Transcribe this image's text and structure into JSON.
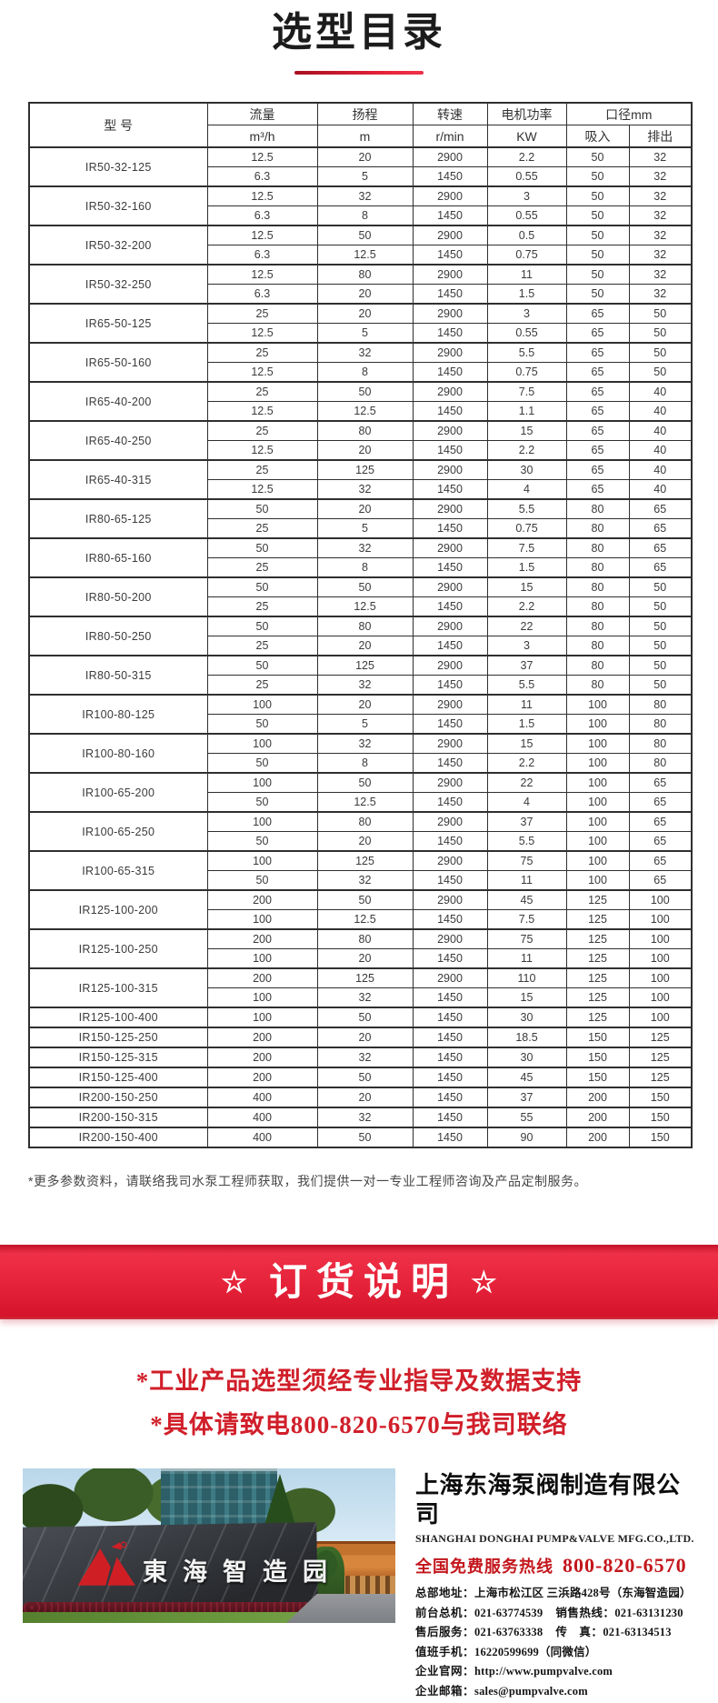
{
  "page": {
    "title": "选型目录"
  },
  "colors": {
    "accent_red": "#e62339",
    "banner_red_top": "#ee3148",
    "banner_red_bottom": "#d5142c",
    "promo_text_red": "#d01f2a",
    "hotline_red": "#c3161c",
    "table_border": "#2f2f2f",
    "title_text": "#1c1c1c"
  },
  "table": {
    "headers": {
      "model": "型 号",
      "flow": "流量",
      "flow_unit": "m³/h",
      "head": "扬程",
      "head_unit": "m",
      "speed": "转速",
      "speed_unit": "r/min",
      "power": "电机功率",
      "power_unit": "KW",
      "diameter": "口径mm",
      "suction": "吸入",
      "discharge": "排出"
    },
    "models": [
      {
        "name": "IR50-32-125",
        "rows": [
          [
            "12.5",
            "20",
            "2900",
            "2.2",
            "50",
            "32"
          ],
          [
            "6.3",
            "5",
            "1450",
            "0.55",
            "50",
            "32"
          ]
        ]
      },
      {
        "name": "IR50-32-160",
        "rows": [
          [
            "12.5",
            "32",
            "2900",
            "3",
            "50",
            "32"
          ],
          [
            "6.3",
            "8",
            "1450",
            "0.55",
            "50",
            "32"
          ]
        ]
      },
      {
        "name": "IR50-32-200",
        "rows": [
          [
            "12.5",
            "50",
            "2900",
            "0.5",
            "50",
            "32"
          ],
          [
            "6.3",
            "12.5",
            "1450",
            "0.75",
            "50",
            "32"
          ]
        ]
      },
      {
        "name": "IR50-32-250",
        "rows": [
          [
            "12.5",
            "80",
            "2900",
            "11",
            "50",
            "32"
          ],
          [
            "6.3",
            "20",
            "1450",
            "1.5",
            "50",
            "32"
          ]
        ]
      },
      {
        "name": "IR65-50-125",
        "rows": [
          [
            "25",
            "20",
            "2900",
            "3",
            "65",
            "50"
          ],
          [
            "12.5",
            "5",
            "1450",
            "0.55",
            "65",
            "50"
          ]
        ]
      },
      {
        "name": "IR65-50-160",
        "rows": [
          [
            "25",
            "32",
            "2900",
            "5.5",
            "65",
            "50"
          ],
          [
            "12.5",
            "8",
            "1450",
            "0.75",
            "65",
            "50"
          ]
        ]
      },
      {
        "name": "IR65-40-200",
        "rows": [
          [
            "25",
            "50",
            "2900",
            "7.5",
            "65",
            "40"
          ],
          [
            "12.5",
            "12.5",
            "1450",
            "1.1",
            "65",
            "40"
          ]
        ]
      },
      {
        "name": "IR65-40-250",
        "rows": [
          [
            "25",
            "80",
            "2900",
            "15",
            "65",
            "40"
          ],
          [
            "12.5",
            "20",
            "1450",
            "2.2",
            "65",
            "40"
          ]
        ]
      },
      {
        "name": "IR65-40-315",
        "rows": [
          [
            "25",
            "125",
            "2900",
            "30",
            "65",
            "40"
          ],
          [
            "12.5",
            "32",
            "1450",
            "4",
            "65",
            "40"
          ]
        ]
      },
      {
        "name": "IR80-65-125",
        "rows": [
          [
            "50",
            "20",
            "2900",
            "5.5",
            "80",
            "65"
          ],
          [
            "25",
            "5",
            "1450",
            "0.75",
            "80",
            "65"
          ]
        ]
      },
      {
        "name": "IR80-65-160",
        "rows": [
          [
            "50",
            "32",
            "2900",
            "7.5",
            "80",
            "65"
          ],
          [
            "25",
            "8",
            "1450",
            "1.5",
            "80",
            "65"
          ]
        ]
      },
      {
        "name": "IR80-50-200",
        "rows": [
          [
            "50",
            "50",
            "2900",
            "15",
            "80",
            "50"
          ],
          [
            "25",
            "12.5",
            "1450",
            "2.2",
            "80",
            "50"
          ]
        ]
      },
      {
        "name": "IR80-50-250",
        "rows": [
          [
            "50",
            "80",
            "2900",
            "22",
            "80",
            "50"
          ],
          [
            "25",
            "20",
            "1450",
            "3",
            "80",
            "50"
          ]
        ]
      },
      {
        "name": "IR80-50-315",
        "rows": [
          [
            "50",
            "125",
            "2900",
            "37",
            "80",
            "50"
          ],
          [
            "25",
            "32",
            "1450",
            "5.5",
            "80",
            "50"
          ]
        ]
      },
      {
        "name": "IR100-80-125",
        "rows": [
          [
            "100",
            "20",
            "2900",
            "11",
            "100",
            "80"
          ],
          [
            "50",
            "5",
            "1450",
            "1.5",
            "100",
            "80"
          ]
        ]
      },
      {
        "name": "IR100-80-160",
        "rows": [
          [
            "100",
            "32",
            "2900",
            "15",
            "100",
            "80"
          ],
          [
            "50",
            "8",
            "1450",
            "2.2",
            "100",
            "80"
          ]
        ]
      },
      {
        "name": "IR100-65-200",
        "rows": [
          [
            "100",
            "50",
            "2900",
            "22",
            "100",
            "65"
          ],
          [
            "50",
            "12.5",
            "1450",
            "4",
            "100",
            "65"
          ]
        ]
      },
      {
        "name": "IR100-65-250",
        "rows": [
          [
            "100",
            "80",
            "2900",
            "37",
            "100",
            "65"
          ],
          [
            "50",
            "20",
            "1450",
            "5.5",
            "100",
            "65"
          ]
        ]
      },
      {
        "name": "IR100-65-315",
        "rows": [
          [
            "100",
            "125",
            "2900",
            "75",
            "100",
            "65"
          ],
          [
            "50",
            "32",
            "1450",
            "11",
            "100",
            "65"
          ]
        ]
      },
      {
        "name": "IR125-100-200",
        "rows": [
          [
            "200",
            "50",
            "2900",
            "45",
            "125",
            "100"
          ],
          [
            "100",
            "12.5",
            "1450",
            "7.5",
            "125",
            "100"
          ]
        ]
      },
      {
        "name": "IR125-100-250",
        "rows": [
          [
            "200",
            "80",
            "2900",
            "75",
            "125",
            "100"
          ],
          [
            "100",
            "20",
            "1450",
            "11",
            "125",
            "100"
          ]
        ]
      },
      {
        "name": "IR125-100-315",
        "rows": [
          [
            "200",
            "125",
            "2900",
            "110",
            "125",
            "100"
          ],
          [
            "100",
            "32",
            "1450",
            "15",
            "125",
            "100"
          ]
        ]
      },
      {
        "name": "IR125-100-400",
        "rows": [
          [
            "100",
            "50",
            "1450",
            "30",
            "125",
            "100"
          ]
        ]
      },
      {
        "name": "IR150-125-250",
        "rows": [
          [
            "200",
            "20",
            "1450",
            "18.5",
            "150",
            "125"
          ]
        ]
      },
      {
        "name": "IR150-125-315",
        "rows": [
          [
            "200",
            "32",
            "1450",
            "30",
            "150",
            "125"
          ]
        ]
      },
      {
        "name": "IR150-125-400",
        "rows": [
          [
            "200",
            "50",
            "1450",
            "45",
            "150",
            "125"
          ]
        ]
      },
      {
        "name": "IR200-150-250",
        "rows": [
          [
            "400",
            "20",
            "1450",
            "37",
            "200",
            "150"
          ]
        ]
      },
      {
        "name": "IR200-150-315",
        "rows": [
          [
            "400",
            "32",
            "1450",
            "55",
            "200",
            "150"
          ]
        ]
      },
      {
        "name": "IR200-150-400",
        "rows": [
          [
            "400",
            "50",
            "1450",
            "90",
            "200",
            "150"
          ]
        ]
      }
    ],
    "note": "*更多参数资料，请联络我司水泵工程师获取，我们提供一对一专业工程师咨询及产品定制服务。"
  },
  "order_section": {
    "star": "☆",
    "title": "订货说明",
    "lines": [
      "*工业产品选型须经专业指导及数据支持",
      "*具体请致电800-820-6570与我司联络"
    ]
  },
  "footer": {
    "photo_sign": "東海智造园",
    "company_cn": "上海东海泵阀制造有限公司",
    "company_en": "SHANGHAI DONGHAI PUMP&VALVE MFG.CO.,LTD.",
    "hotline_label": "全国免费服务热线",
    "hotline_number": "800-820-6570",
    "contact_lines": [
      [
        {
          "label": "总部地址：",
          "value": "上海市松江区 三浜路428号（东海智造园）"
        }
      ],
      [
        {
          "label": "前台总机：",
          "value": "021-63774539"
        },
        {
          "label": "销售热线：",
          "value": "021-63131230"
        }
      ],
      [
        {
          "label": "售后服务：",
          "value": "021-63763338"
        },
        {
          "label": "传　真：",
          "value": "021-63134513"
        }
      ],
      [
        {
          "label": "值班手机：",
          "value": "16220599699（同微信）"
        }
      ],
      [
        {
          "label": "企业官网：",
          "value": "http://www.pumpvalve.com"
        }
      ],
      [
        {
          "label": "企业邮箱：",
          "value": "sales@pumpvalve.com"
        }
      ]
    ]
  }
}
